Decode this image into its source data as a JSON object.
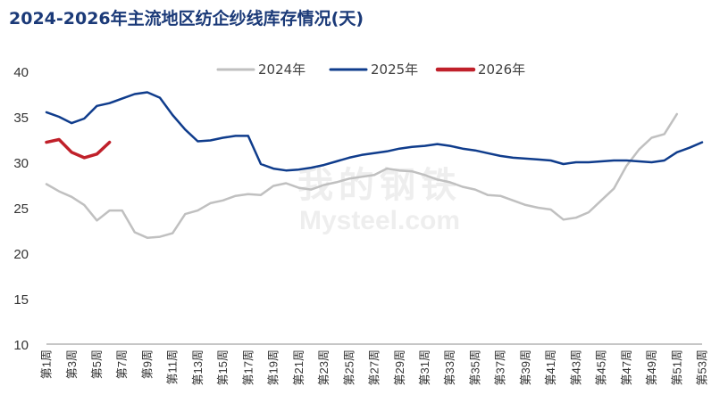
{
  "chart_data": {
    "type": "line",
    "title": "2024-2026年主流地区纺企纱线库存情况(天)",
    "watermark_cn": "我的钢铁",
    "watermark_en": "Mysteel.com",
    "ylim": [
      10,
      40
    ],
    "yticks": [
      10,
      15,
      20,
      25,
      30,
      35,
      40
    ],
    "grid": false,
    "legend_position": "top",
    "x_tick_labels": [
      "第1周",
      "第3周",
      "第5周",
      "第7周",
      "第9周",
      "第11周",
      "第13周",
      "第15周",
      "第17周",
      "第19周",
      "第21周",
      "第23周",
      "第25周",
      "第27周",
      "第29周",
      "第31周",
      "第33周",
      "第35周",
      "第37周",
      "第39周",
      "第41周",
      "第43周",
      "第45周",
      "第47周",
      "第49周",
      "第51周",
      "第53周"
    ],
    "x_tick_weeks": [
      1,
      3,
      5,
      7,
      9,
      11,
      13,
      15,
      17,
      19,
      21,
      23,
      25,
      27,
      29,
      31,
      33,
      35,
      37,
      39,
      41,
      43,
      45,
      47,
      49,
      51,
      53
    ],
    "series": [
      {
        "name": "2024年",
        "color": "#c0c0c0",
        "weeks": [
          1,
          2,
          3,
          4,
          5,
          6,
          7,
          8,
          9,
          10,
          11,
          12,
          13,
          14,
          15,
          16,
          17,
          18,
          19,
          20,
          21,
          22,
          23,
          24,
          25,
          26,
          27,
          28,
          29,
          30,
          31,
          32,
          33,
          34,
          35,
          36,
          37,
          38,
          39,
          40,
          41,
          42,
          43,
          44,
          45,
          46,
          47,
          48,
          49,
          50,
          51
        ],
        "values": [
          27.6,
          26.8,
          26.2,
          25.3,
          23.6,
          24.7,
          24.7,
          22.3,
          21.7,
          21.8,
          22.2,
          24.3,
          24.7,
          25.5,
          25.8,
          26.3,
          26.5,
          26.4,
          27.4,
          27.7,
          27.2,
          27.0,
          27.5,
          27.8,
          28.2,
          28.4,
          28.6,
          29.3,
          29.1,
          29.0,
          28.6,
          28.1,
          27.8,
          27.3,
          27.0,
          26.4,
          26.3,
          25.8,
          25.3,
          25.0,
          24.8,
          23.7,
          23.9,
          24.5,
          25.8,
          27.1,
          29.6,
          31.4,
          32.7,
          33.1,
          35.3
        ]
      },
      {
        "name": "2025年",
        "color": "#0f3c8c",
        "weeks": [
          1,
          2,
          3,
          4,
          5,
          6,
          7,
          8,
          9,
          10,
          11,
          12,
          13,
          14,
          15,
          16,
          17,
          18,
          19,
          20,
          21,
          22,
          23,
          24,
          25,
          26,
          27,
          28,
          29,
          30,
          31,
          32,
          33,
          34,
          35,
          36,
          37,
          38,
          39,
          40,
          41,
          42,
          43,
          44,
          45,
          46,
          47,
          48,
          49,
          50,
          51,
          52,
          53
        ],
        "values": [
          35.5,
          35.0,
          34.3,
          34.8,
          36.2,
          36.5,
          37.0,
          37.5,
          37.7,
          37.1,
          35.2,
          33.6,
          32.3,
          32.4,
          32.7,
          32.9,
          32.9,
          29.8,
          29.3,
          29.1,
          29.2,
          29.4,
          29.7,
          30.1,
          30.5,
          30.8,
          31.0,
          31.2,
          31.5,
          31.7,
          31.8,
          32.0,
          31.8,
          31.5,
          31.3,
          31.0,
          30.7,
          30.5,
          30.4,
          30.3,
          30.2,
          29.8,
          30.0,
          30.0,
          30.1,
          30.2,
          30.2,
          30.1,
          30.0,
          30.2,
          31.1,
          31.6,
          32.2
        ]
      },
      {
        "name": "2026年",
        "color": "#c0202a",
        "weeks": [
          1,
          2,
          3,
          4,
          5,
          6
        ],
        "values": [
          32.2,
          32.5,
          31.1,
          30.5,
          30.9,
          32.2
        ]
      }
    ]
  }
}
